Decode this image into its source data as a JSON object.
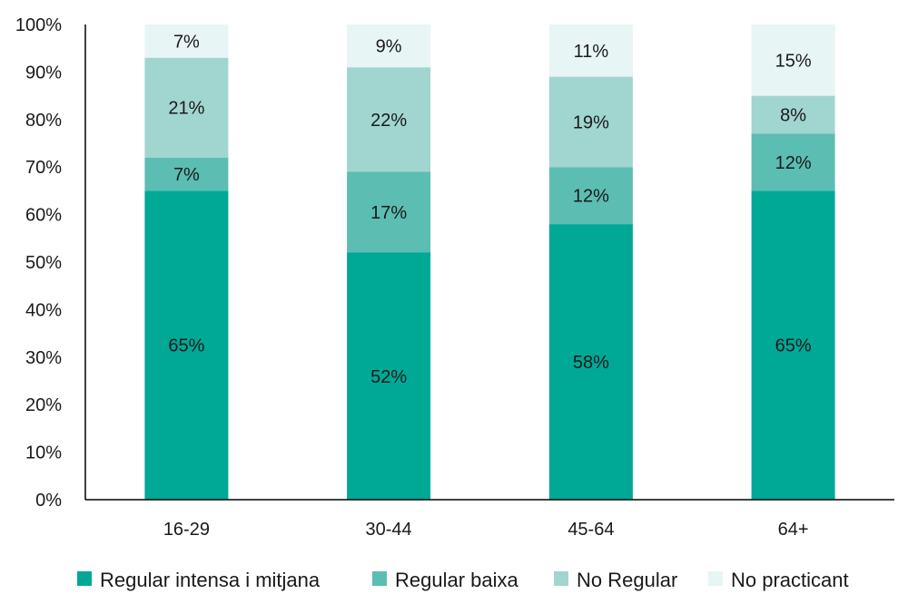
{
  "chart_data": {
    "type": "bar",
    "stacked": true,
    "categories": [
      "16-29",
      "30-44",
      "45-64",
      "64+"
    ],
    "series": [
      {
        "name": "Regular intensa i mitjana",
        "color": "#00a896",
        "values": [
          65,
          52,
          58,
          65
        ],
        "labels": [
          "65%",
          "52%",
          "58%",
          "65%"
        ]
      },
      {
        "name": "Regular baixa",
        "color": "#5cbdb2",
        "values": [
          7,
          17,
          12,
          12
        ],
        "labels": [
          "7%",
          "17%",
          "12%",
          "12%"
        ]
      },
      {
        "name": "No Regular",
        "color": "#a1d5d0",
        "values": [
          21,
          22,
          19,
          8
        ],
        "labels": [
          "21%",
          "22%",
          "19%",
          "8%"
        ]
      },
      {
        "name": "No practicant",
        "color": "#e7f5f4",
        "values": [
          7,
          9,
          11,
          15
        ],
        "labels": [
          "7%",
          "9%",
          "11%",
          "15%"
        ]
      }
    ],
    "ylim": [
      0,
      100
    ],
    "yticks": [
      "0%",
      "10%",
      "20%",
      "30%",
      "40%",
      "50%",
      "60%",
      "70%",
      "80%",
      "90%",
      "100%"
    ],
    "title": "",
    "xlabel": "",
    "ylabel": "",
    "grid": false,
    "legend": "bottom"
  }
}
